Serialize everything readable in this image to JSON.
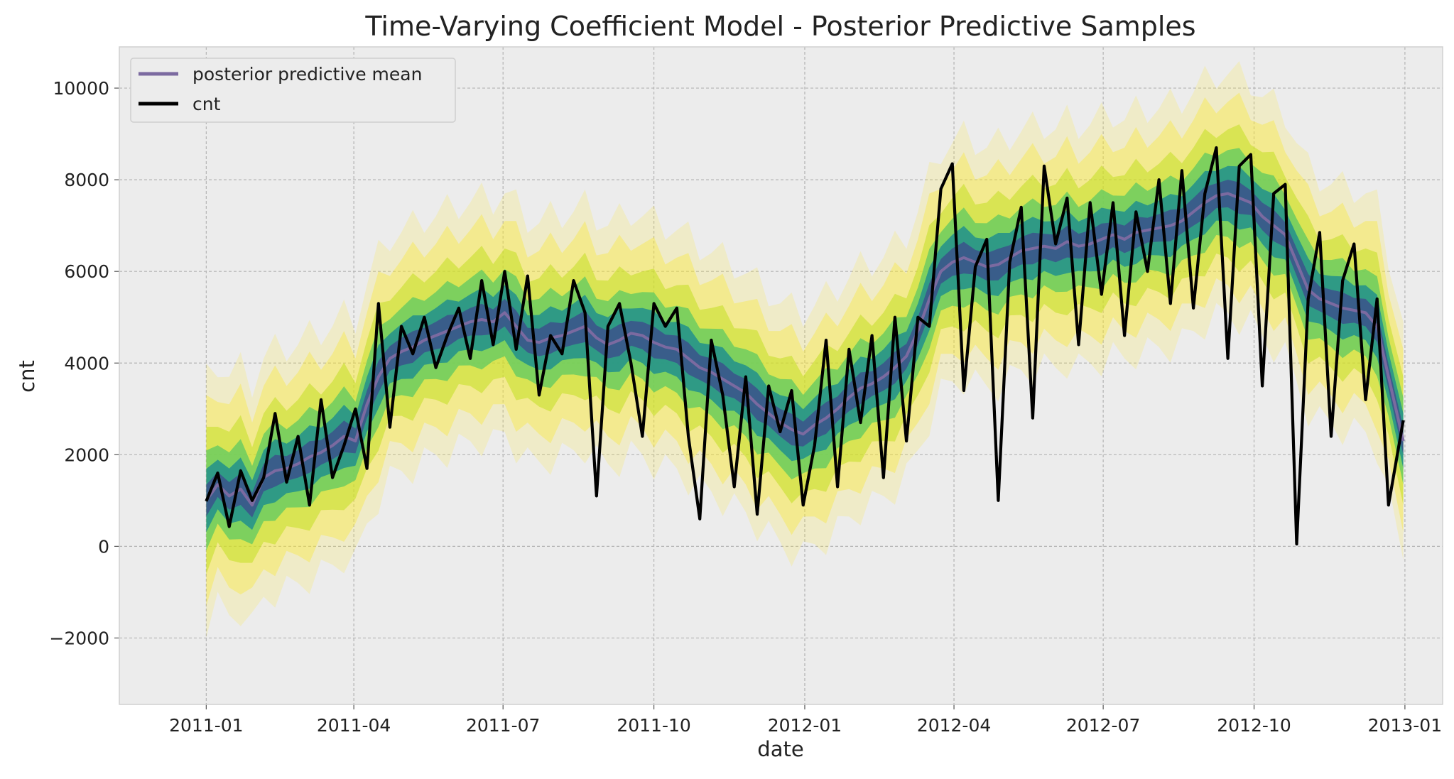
{
  "chart_data": {
    "type": "line",
    "title": "Time-Varying Coefficient Model - Posterior Predictive Samples",
    "xlabel": "date",
    "ylabel": "cnt",
    "x_range": [
      "2010-11-09",
      "2013-01-24"
    ],
    "ylim": [
      -3450,
      10900
    ],
    "x_ticks": [
      "2011-01",
      "2011-04",
      "2011-07",
      "2011-10",
      "2012-01",
      "2012-04",
      "2012-07",
      "2012-10",
      "2013-01"
    ],
    "y_ticks": [
      -2000,
      0,
      2000,
      4000,
      6000,
      8000,
      10000
    ],
    "grid": true,
    "legend_position": "top-left",
    "colors": {
      "plot_background": "#ececec",
      "grid": "#b3b3b3",
      "mean_line": "#7b6aa0",
      "cnt_line": "#000000",
      "band_colormap": [
        "#fde725",
        "#5ec962",
        "#21918c",
        "#3b528b"
      ]
    },
    "series": [
      {
        "name": "posterior predictive mean",
        "role": "mean",
        "color": "#7b6aa0",
        "x": [
          "2011-01-01",
          "2011-01-08",
          "2011-01-15",
          "2011-01-22",
          "2011-01-29",
          "2011-02-05",
          "2011-02-12",
          "2011-02-19",
          "2011-02-26",
          "2011-03-05",
          "2011-03-12",
          "2011-03-19",
          "2011-03-26",
          "2011-04-02",
          "2011-04-09",
          "2011-04-16",
          "2011-04-23",
          "2011-04-30",
          "2011-05-07",
          "2011-05-14",
          "2011-05-21",
          "2011-05-28",
          "2011-06-04",
          "2011-06-11",
          "2011-06-18",
          "2011-06-25",
          "2011-07-02",
          "2011-07-09",
          "2011-07-16",
          "2011-07-23",
          "2011-07-30",
          "2011-08-06",
          "2011-08-13",
          "2011-08-20",
          "2011-08-27",
          "2011-09-03",
          "2011-09-10",
          "2011-09-17",
          "2011-09-24",
          "2011-10-01",
          "2011-10-08",
          "2011-10-15",
          "2011-10-22",
          "2011-10-29",
          "2011-11-05",
          "2011-11-12",
          "2011-11-19",
          "2011-11-26",
          "2011-12-03",
          "2011-12-10",
          "2011-12-17",
          "2011-12-24",
          "2011-12-31",
          "2012-01-07",
          "2012-01-14",
          "2012-01-21",
          "2012-01-28",
          "2012-02-04",
          "2012-02-11",
          "2012-02-18",
          "2012-02-25",
          "2012-03-03",
          "2012-03-10",
          "2012-03-17",
          "2012-03-24",
          "2012-03-31",
          "2012-04-07",
          "2012-04-14",
          "2012-04-21",
          "2012-04-28",
          "2012-05-05",
          "2012-05-12",
          "2012-05-19",
          "2012-05-26",
          "2012-06-02",
          "2012-06-09",
          "2012-06-16",
          "2012-06-23",
          "2012-06-30",
          "2012-07-07",
          "2012-07-14",
          "2012-07-21",
          "2012-07-28",
          "2012-08-04",
          "2012-08-11",
          "2012-08-18",
          "2012-08-25",
          "2012-09-01",
          "2012-09-08",
          "2012-09-15",
          "2012-09-22",
          "2012-09-29",
          "2012-10-06",
          "2012-10-13",
          "2012-10-20",
          "2012-10-27",
          "2012-11-03",
          "2012-11-10",
          "2012-11-17",
          "2012-11-24",
          "2012-12-01",
          "2012-12-08",
          "2012-12-15",
          "2012-12-22",
          "2012-12-31"
        ],
        "values": [
          1000,
          1350,
          1100,
          1250,
          900,
          1500,
          1650,
          1700,
          1800,
          1950,
          2050,
          2200,
          2400,
          2300,
          3100,
          3700,
          4100,
          4250,
          4350,
          4500,
          4600,
          4700,
          4800,
          4900,
          4950,
          4900,
          5100,
          4800,
          4500,
          4450,
          4550,
          4600,
          4700,
          4800,
          4550,
          4400,
          4500,
          4650,
          4600,
          4450,
          4350,
          4300,
          4100,
          3900,
          3800,
          3650,
          3500,
          3350,
          3100,
          2900,
          2700,
          2550,
          2450,
          2650,
          2800,
          3000,
          3250,
          3450,
          3550,
          3700,
          3900,
          4150,
          4700,
          5400,
          6000,
          6200,
          6300,
          6200,
          6100,
          6150,
          6300,
          6450,
          6500,
          6550,
          6500,
          6650,
          6550,
          6600,
          6700,
          6800,
          6700,
          6850,
          6900,
          6950,
          7000,
          7100,
          7300,
          7500,
          7650,
          7700,
          7600,
          7500,
          7200,
          7000,
          6800,
          6200,
          5600,
          5400,
          5300,
          5200,
          5150,
          5100,
          4800,
          3700,
          2300
        ]
      },
      {
        "name": "cnt",
        "role": "observed",
        "color": "#000000",
        "x": [
          "2011-01-01",
          "2011-01-08",
          "2011-01-15",
          "2011-01-22",
          "2011-01-29",
          "2011-02-05",
          "2011-02-12",
          "2011-02-19",
          "2011-02-26",
          "2011-03-05",
          "2011-03-12",
          "2011-03-19",
          "2011-03-26",
          "2011-04-02",
          "2011-04-09",
          "2011-04-16",
          "2011-04-23",
          "2011-04-30",
          "2011-05-07",
          "2011-05-14",
          "2011-05-21",
          "2011-05-28",
          "2011-06-04",
          "2011-06-11",
          "2011-06-18",
          "2011-06-25",
          "2011-07-02",
          "2011-07-09",
          "2011-07-16",
          "2011-07-23",
          "2011-07-30",
          "2011-08-06",
          "2011-08-13",
          "2011-08-20",
          "2011-08-27",
          "2011-09-03",
          "2011-09-10",
          "2011-09-17",
          "2011-09-24",
          "2011-10-01",
          "2011-10-08",
          "2011-10-15",
          "2011-10-22",
          "2011-10-29",
          "2011-11-05",
          "2011-11-12",
          "2011-11-19",
          "2011-11-26",
          "2011-12-03",
          "2011-12-10",
          "2011-12-17",
          "2011-12-24",
          "2011-12-31",
          "2012-01-07",
          "2012-01-14",
          "2012-01-21",
          "2012-01-28",
          "2012-02-04",
          "2012-02-11",
          "2012-02-18",
          "2012-02-25",
          "2012-03-03",
          "2012-03-10",
          "2012-03-17",
          "2012-03-24",
          "2012-03-31",
          "2012-04-07",
          "2012-04-14",
          "2012-04-21",
          "2012-04-28",
          "2012-05-05",
          "2012-05-12",
          "2012-05-19",
          "2012-05-26",
          "2012-06-02",
          "2012-06-09",
          "2012-06-16",
          "2012-06-23",
          "2012-06-30",
          "2012-07-07",
          "2012-07-14",
          "2012-07-21",
          "2012-07-28",
          "2012-08-04",
          "2012-08-11",
          "2012-08-18",
          "2012-08-25",
          "2012-09-01",
          "2012-09-08",
          "2012-09-15",
          "2012-09-22",
          "2012-09-29",
          "2012-10-06",
          "2012-10-13",
          "2012-10-20",
          "2012-10-27",
          "2012-11-03",
          "2012-11-10",
          "2012-11-17",
          "2012-11-24",
          "2012-12-01",
          "2012-12-08",
          "2012-12-15",
          "2012-12-22",
          "2012-12-31"
        ],
        "values": [
          985,
          1600,
          430,
          1650,
          1000,
          1500,
          2900,
          1400,
          2400,
          900,
          3200,
          1500,
          2200,
          3000,
          1700,
          5300,
          2600,
          4800,
          4200,
          5000,
          3900,
          4600,
          5200,
          4100,
          5800,
          4400,
          6000,
          4300,
          5900,
          3300,
          4600,
          4200,
          5800,
          5100,
          1100,
          4800,
          5300,
          4000,
          2400,
          5300,
          4800,
          5200,
          2400,
          600,
          4500,
          3300,
          1300,
          3700,
          700,
          3500,
          2500,
          3400,
          900,
          2200,
          4500,
          1300,
          4300,
          2700,
          4600,
          1500,
          5000,
          2300,
          5000,
          4800,
          7800,
          8350,
          3400,
          6100,
          6700,
          1000,
          6200,
          7400,
          2800,
          8300,
          6600,
          7600,
          4400,
          7500,
          5500,
          7500,
          4600,
          7300,
          6000,
          8000,
          5300,
          8200,
          5200,
          7700,
          8700,
          4100,
          8300,
          8550,
          3500,
          7700,
          7900,
          50,
          5400,
          6850,
          2400,
          5800,
          6600,
          3200,
          5400,
          900,
          2750
        ]
      }
    ]
  }
}
